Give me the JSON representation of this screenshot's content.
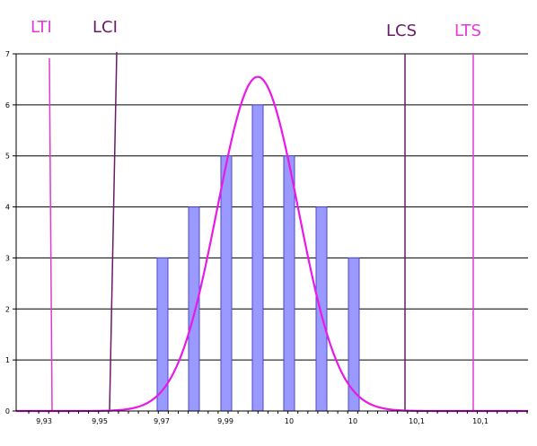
{
  "chart_data": {
    "type": "bar",
    "categories": [
      "9,97",
      "9,98",
      "9,99",
      "10",
      "10",
      "10",
      "10"
    ],
    "values": [
      3,
      4,
      5,
      6,
      5,
      4,
      3
    ],
    "bar_color": "#9999ff",
    "bar_edge_color": "#4a4ac8",
    "x_tick_labels": [
      "9,93",
      "9,95",
      "9,97",
      "9,99",
      "10",
      "10",
      "10,1",
      "10,1"
    ],
    "y_tick_labels": [
      "0",
      "1",
      "2",
      "3",
      "4",
      "5",
      "6",
      "7"
    ],
    "ylim": [
      0,
      7
    ],
    "grid": true,
    "curve": {
      "type": "normal",
      "peak": 6.55,
      "color": "#e81ae8"
    },
    "limits": [
      {
        "label": "LTI",
        "color": "#e03ad8"
      },
      {
        "label": "LCI",
        "color": "#6a1a6a"
      },
      {
        "label": "LCS",
        "color": "#6a1a6a"
      },
      {
        "label": "LTS",
        "color": "#e03ad8"
      }
    ]
  }
}
